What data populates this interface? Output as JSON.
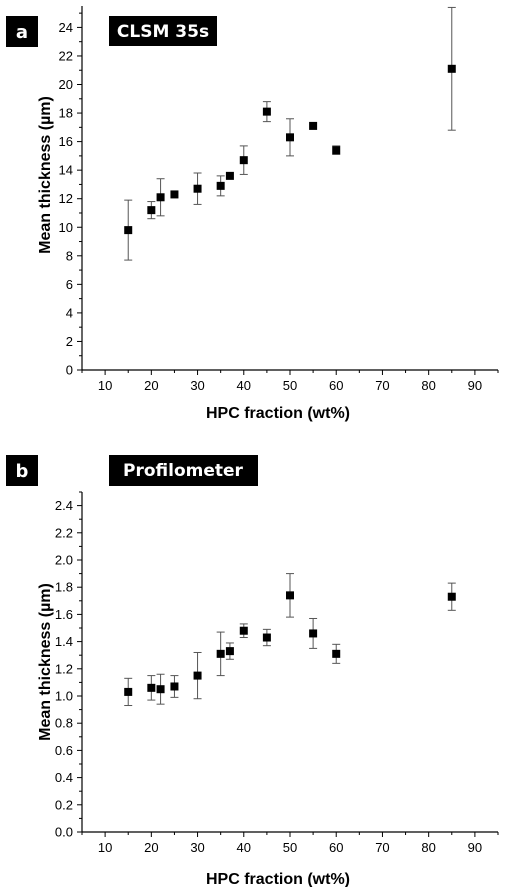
{
  "chart_data": [
    {
      "panel": "a",
      "title": "CLSM 35s",
      "type": "scatter",
      "xlabel": "HPC fraction (wt%)",
      "ylabel": "Mean thickness (µm)",
      "xlim": [
        5,
        95
      ],
      "ylim": [
        0,
        25.5
      ],
      "xticks": [
        10,
        20,
        30,
        40,
        50,
        60,
        70,
        80,
        90
      ],
      "yticks": [
        0,
        2,
        4,
        6,
        8,
        10,
        12,
        14,
        16,
        18,
        20,
        22,
        24
      ],
      "tick_decimals": 0,
      "points": [
        {
          "x": 15,
          "y": 9.8,
          "err": 2.1
        },
        {
          "x": 20,
          "y": 11.2,
          "err": 0.6
        },
        {
          "x": 22,
          "y": 12.1,
          "err": 1.3
        },
        {
          "x": 25,
          "y": 12.3,
          "err": 0
        },
        {
          "x": 30,
          "y": 12.7,
          "err": 1.1
        },
        {
          "x": 35,
          "y": 12.9,
          "err": 0.7
        },
        {
          "x": 37,
          "y": 13.6,
          "err": 0
        },
        {
          "x": 40,
          "y": 14.7,
          "err": 1.0
        },
        {
          "x": 45,
          "y": 18.1,
          "err": 0.7
        },
        {
          "x": 50,
          "y": 16.3,
          "err": 1.3
        },
        {
          "x": 55,
          "y": 17.1,
          "err": 0
        },
        {
          "x": 60,
          "y": 15.4,
          "err": 0.3
        },
        {
          "x": 85,
          "y": 21.1,
          "err": 4.3
        }
      ]
    },
    {
      "panel": "b",
      "title": "Profilometer",
      "type": "scatter",
      "xlabel": "HPC fraction (wt%)",
      "ylabel": "Mean thickness (µm)",
      "xlim": [
        5,
        95
      ],
      "ylim": [
        0,
        2.5
      ],
      "xticks": [
        10,
        20,
        30,
        40,
        50,
        60,
        70,
        80,
        90
      ],
      "yticks": [
        0.0,
        0.2,
        0.4,
        0.6,
        0.8,
        1.0,
        1.2,
        1.4,
        1.6,
        1.8,
        2.0,
        2.2,
        2.4
      ],
      "tick_decimals": 1,
      "points": [
        {
          "x": 15,
          "y": 1.03,
          "err": 0.1
        },
        {
          "x": 20,
          "y": 1.06,
          "err": 0.09
        },
        {
          "x": 22,
          "y": 1.05,
          "err": 0.11
        },
        {
          "x": 25,
          "y": 1.07,
          "err": 0.08
        },
        {
          "x": 30,
          "y": 1.15,
          "err": 0.17
        },
        {
          "x": 35,
          "y": 1.31,
          "err": 0.16
        },
        {
          "x": 37,
          "y": 1.33,
          "err": 0.06
        },
        {
          "x": 40,
          "y": 1.48,
          "err": 0.05
        },
        {
          "x": 45,
          "y": 1.43,
          "err": 0.06
        },
        {
          "x": 50,
          "y": 1.74,
          "err": 0.16
        },
        {
          "x": 55,
          "y": 1.46,
          "err": 0.11
        },
        {
          "x": 60,
          "y": 1.31,
          "err": 0.07
        },
        {
          "x": 85,
          "y": 1.73,
          "err": 0.1
        }
      ]
    }
  ]
}
